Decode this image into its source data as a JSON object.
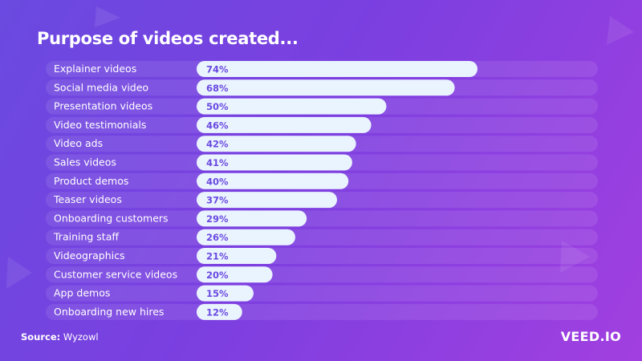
{
  "title": "Purpose of videos created...",
  "source_label": "Source:",
  "source_name": "Wyzowl",
  "brand": "VEED.IO",
  "colors": {
    "bar": "#eaf4ff",
    "track": "#ffffff",
    "value_text": "#6a4ae0"
  },
  "chart_data": {
    "type": "bar",
    "orientation": "horizontal",
    "title": "Purpose of videos created...",
    "categories": [
      "Explainer videos",
      "Social media video",
      "Presentation videos",
      "Video testimonials",
      "Video ads",
      "Sales videos",
      "Product demos",
      "Teaser videos",
      "Onboarding customers",
      "Training staff",
      "Videographics",
      "Customer service videos",
      "App demos",
      "Onboarding new hires"
    ],
    "values": [
      74,
      68,
      50,
      46,
      42,
      41,
      40,
      37,
      29,
      26,
      21,
      20,
      15,
      12
    ],
    "value_labels": [
      "74%",
      "68%",
      "50%",
      "46%",
      "42%",
      "41%",
      "40%",
      "37%",
      "29%",
      "26%",
      "21%",
      "20%",
      "15%",
      "12%"
    ],
    "unit": "%"
  }
}
